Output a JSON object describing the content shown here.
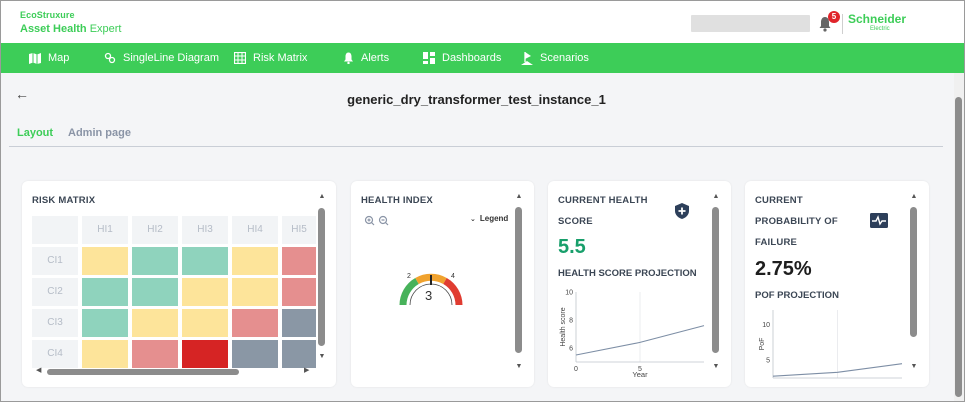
{
  "header": {
    "logo_top": "EcoStruxure",
    "logo_bottom_bold": "Asset Health",
    "logo_bottom_rest": " Expert",
    "notification_count": "5",
    "brand": "Schneider",
    "brand_sub": "Electric"
  },
  "nav": {
    "items": [
      {
        "label": "Map",
        "icon": "map-icon"
      },
      {
        "label": "SingleLine Diagram",
        "icon": "singleline-icon"
      },
      {
        "label": "Risk Matrix",
        "icon": "grid-icon"
      },
      {
        "label": "Alerts",
        "icon": "bell-icon"
      },
      {
        "label": "Dashboards",
        "icon": "dashboard-icon"
      },
      {
        "label": "Scenarios",
        "icon": "scenario-icon"
      }
    ]
  },
  "page": {
    "back": "←",
    "title": "generic_dry_transformer_test_instance_1",
    "tabs": [
      {
        "label": "Layout",
        "active": true
      },
      {
        "label": "Admin page",
        "active": false
      }
    ]
  },
  "risk_matrix": {
    "title": "RISK MATRIX",
    "columns": [
      "HI1",
      "HI2",
      "HI3",
      "HI4",
      "HI5"
    ],
    "rows": [
      "CI1",
      "CI2",
      "CI3",
      "CI4"
    ],
    "cells": [
      [
        "#fde49a",
        "#8fd3bd",
        "#8fd3bd",
        "#fde49a",
        "#e58f8f"
      ],
      [
        "#8fd3bd",
        "#8fd3bd",
        "#fde49a",
        "#fde49a",
        "#e58f8f"
      ],
      [
        "#8fd3bd",
        "#fde49a",
        "#fde49a",
        "#e58f8f",
        "#8a97a5"
      ],
      [
        "#fde49a",
        "#e58f8f",
        "#d62424",
        "#8a97a5",
        "#8a97a5"
      ]
    ]
  },
  "health_index": {
    "title": "HEALTH INDEX",
    "legend": "Legend",
    "value": "3",
    "ticks": [
      "2",
      "4"
    ]
  },
  "current_health": {
    "title_line1": "CURRENT HEALTH",
    "title_line2": "SCORE",
    "value": "5.5",
    "projection_title": "HEALTH SCORE PROJECTION",
    "ylabel": "Health score",
    "xlabel": "Year",
    "y_ticks": [
      "6",
      "8",
      "10"
    ],
    "x_ticks": [
      "0",
      "5"
    ],
    "accent": "#189f6b"
  },
  "current_pof": {
    "title_line1": "CURRENT",
    "title_line2": "PROBABILITY OF",
    "title_line3": "FAILURE",
    "value": "2.75%",
    "projection_title": "POF PROJECTION",
    "ylabel": "PoF",
    "y_ticks": [
      "5",
      "10"
    ]
  },
  "chart_data": [
    {
      "type": "line",
      "title": "HEALTH SCORE PROJECTION",
      "xlabel": "Year",
      "ylabel": "Health score",
      "x": [
        0,
        5,
        10
      ],
      "series": [
        {
          "values": [
            5.5,
            6.4,
            7.6
          ]
        }
      ],
      "xlim": [
        0,
        10
      ],
      "ylim": [
        5,
        10
      ]
    },
    {
      "type": "line",
      "title": "POF PROJECTION",
      "xlabel": "",
      "ylabel": "PoF",
      "x": [
        0,
        5,
        10
      ],
      "series": [
        {
          "values": [
            2.75,
            3.3,
            4.5
          ]
        }
      ],
      "xlim": [
        0,
        10
      ],
      "ylim": [
        2.5,
        12
      ]
    }
  ]
}
